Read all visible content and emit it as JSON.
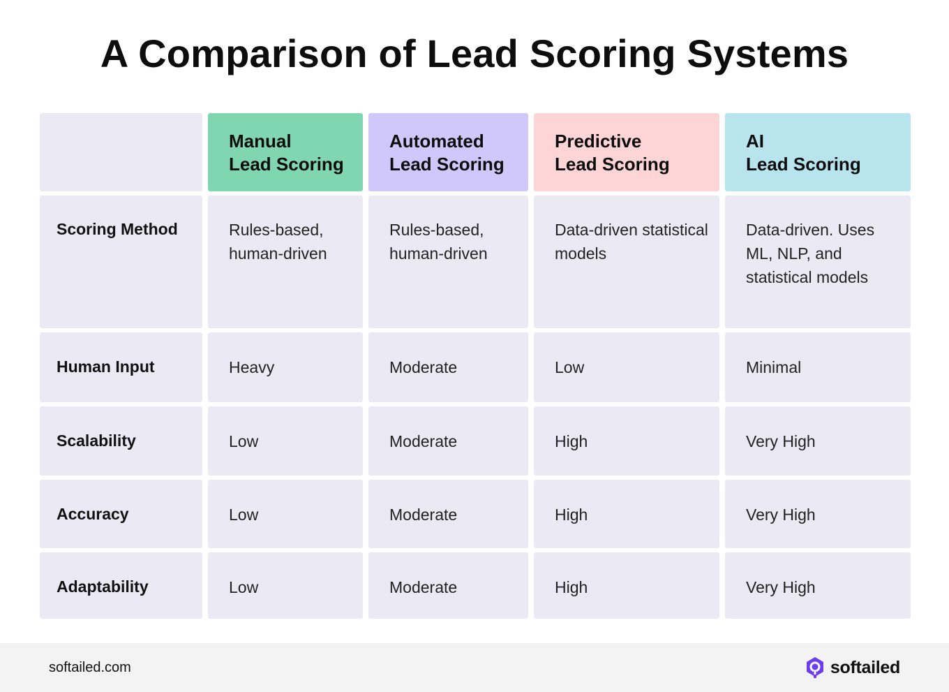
{
  "title": "A Comparison of Lead Scoring Systems",
  "colors": {
    "manual": "#80d6b0",
    "automated": "#d0c8fb",
    "predictive": "#fdd5d6",
    "ai": "#b8e4ee",
    "cell": "#ebe9f3",
    "brand_icon": "#6b3cf0"
  },
  "table": {
    "columns": [
      {
        "label": "Manual\nLead Scoring"
      },
      {
        "label": "Automated\nLead Scoring"
      },
      {
        "label": "Predictive\nLead Scoring"
      },
      {
        "label": "AI\nLead Scoring"
      }
    ],
    "rows": [
      {
        "label": "Scoring Method",
        "values": [
          "Rules-based, human-driven",
          "Rules-based, human-driven",
          "Data-driven statistical models",
          "Data-driven. Uses ML, NLP, and statistical models"
        ]
      },
      {
        "label": "Human Input",
        "values": [
          "Heavy",
          "Moderate",
          "Low",
          "Minimal"
        ]
      },
      {
        "label": "Scalability",
        "values": [
          "Low",
          "Moderate",
          "High",
          "Very High"
        ]
      },
      {
        "label": "Accuracy",
        "values": [
          "Low",
          "Moderate",
          "High",
          "Very High"
        ]
      },
      {
        "label": "Adaptability",
        "values": [
          "Low",
          "Moderate",
          "High",
          "Very High"
        ]
      }
    ]
  },
  "footer": {
    "url": "softailed.com",
    "brand": "softailed",
    "brand_icon": "softailed-logo-icon"
  }
}
